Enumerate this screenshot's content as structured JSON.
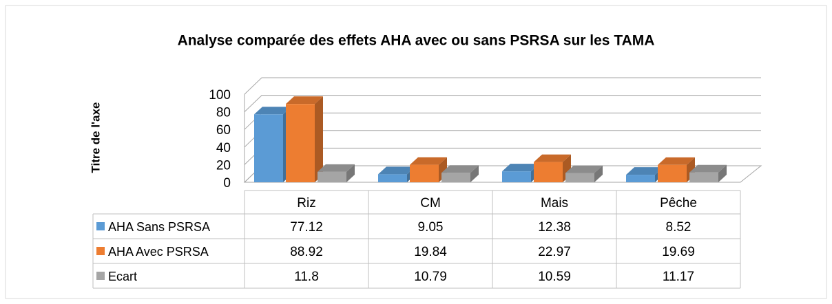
{
  "chart_data": {
    "type": "bar3d",
    "title": "Analyse comparée des effets AHA avec ou sans PSRSA sur les TAMA",
    "y_axis_label": "Titre de l'axe",
    "categories": [
      "Riz",
      "CM",
      "Mais",
      "Pêche"
    ],
    "series": [
      {
        "name": "AHA Sans PSRSA",
        "color": "#5b9bd5",
        "values": [
          77.12,
          9.05,
          12.38,
          8.52
        ]
      },
      {
        "name": "AHA Avec PSRSA",
        "color": "#ed7d31",
        "values": [
          88.92,
          19.84,
          22.97,
          19.69
        ]
      },
      {
        "name": "Ecart",
        "color": "#a5a5a5",
        "values": [
          11.8,
          10.79,
          10.59,
          11.17
        ]
      }
    ],
    "ylim": [
      0,
      100
    ],
    "yticks": [
      0,
      20,
      40,
      60,
      80,
      100
    ],
    "grid": true,
    "data_table": true
  }
}
